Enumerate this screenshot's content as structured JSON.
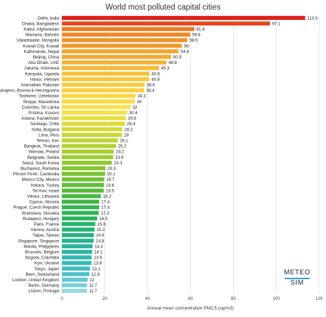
{
  "chart_data": {
    "type": "bar",
    "orientation": "horizontal",
    "title": "World most polluted capital cities",
    "xlabel": "Annual mean concentration PM2,5 (ug/m3)",
    "ylabel": "",
    "xlim": [
      0,
      120
    ],
    "xticks": [
      0,
      20,
      40,
      60,
      80,
      100,
      120
    ],
    "grid": true,
    "legend": "none",
    "categories": [
      "Delhi, India",
      "Dhaka, Bangladesh",
      "Kabul, Afghanistan",
      "Manama, Bahrein",
      "Ulaanbaatar, Mongolia",
      "Kuwait City, Kuwait",
      "Kathmandu, Nepal",
      "Beijing, China",
      "Abu Dhabi, UAE",
      "Jakarta, Indonesia",
      "Kampala, Uganda",
      "Hanoi, Vietnam",
      "Islamabad, Pakistan",
      "Sarajevo, Bosnia & Herzegovina",
      "Tashkent, Uzbekistan",
      "Skopje, Macedonia",
      "Colombo, Sri Lanka",
      "Pristina, Kosovo",
      "Astana, Kazakhstan",
      "Santiago, Chile",
      "Sofia, Bulgaria",
      "Lima, Peru",
      "Tehran, Iran",
      "Bangkok, Thailand",
      "Warsaw, Poland",
      "Belgrade, Serbia",
      "Seoul, South Korea",
      "Bucharest, Romania",
      "Phnom Penh, Cambodia",
      "Mexico City, Mexico",
      "Ankara, Turkey",
      "Tel Aviv, Israel",
      "Vilnius, Lithuania",
      "Cyprus, Nicosia",
      "Prague, Czech Republic",
      "Bratislava, Slovakia",
      "Budapest, Hungary",
      "Paris, France",
      "Vienna, Austria",
      "Taipei, Taiwan",
      "Singapore, Singapore",
      "Manila, Philippines",
      "Brussels, Belgium",
      "Bogota, Colombia",
      "Kyiv, Ukraine",
      "Tokyo, Japan",
      "Bern, Switzerland",
      "London, United Kingdom",
      "Berlin, Germany",
      "Lisbon, Portugal"
    ],
    "values": [
      113.5,
      97.1,
      61.8,
      59.8,
      58.5,
      56,
      54.4,
      50.9,
      48.8,
      45.3,
      40.8,
      40.8,
      38.6,
      38.4,
      34.3,
      34,
      32,
      30.4,
      29.8,
      29.4,
      28.2,
      28,
      26.1,
      25.2,
      24.2,
      23.9,
      23.3,
      20.3,
      20.1,
      19.7,
      19.6,
      19.5,
      18.2,
      17.4,
      17.4,
      17.2,
      16.5,
      15.6,
      15.2,
      14.9,
      14.8,
      14.3,
      14.1,
      13.9,
      13.8,
      13.1,
      12.8,
      12,
      11.7,
      11.7
    ],
    "value_labels": [
      "113.5",
      "97.1",
      "61.8",
      "59.8",
      "58.5",
      "56",
      "54.4",
      "50.9",
      "48.8",
      "45.3",
      "40.8",
      "40.8",
      "38.6",
      "38.4",
      "34.3",
      "34",
      "32",
      "30.4",
      "29.8",
      "29.4",
      "28.2",
      "28",
      "26.1",
      "25.2",
      "24.2",
      "23.9",
      "23.3",
      "20.3",
      "20.1",
      "19.7",
      "19.6",
      "19.5",
      "18.2",
      "17.4",
      "17.4",
      "17.2",
      "16.5",
      "15.6",
      "15.2",
      "14.9",
      "14.8",
      "14.3",
      "14.1",
      "13.9",
      "13.8",
      "13.1",
      "12.8",
      "12",
      "11.7",
      "11.7"
    ],
    "colors": [
      "#e0201b",
      "#e8481d",
      "#ef7a24",
      "#f08826",
      "#f0922a",
      "#f29a2c",
      "#f3a32f",
      "#f4aa31",
      "#f5b234",
      "#f6ba36",
      "#f7c13a",
      "#f8c73c",
      "#f8cc3e",
      "#f9d040",
      "#fad643",
      "#fbda44",
      "#fce046",
      "#f4e044",
      "#e9de3f",
      "#dedc3a",
      "#d3da37",
      "#c8d834",
      "#bdd632",
      "#b1d330",
      "#a6d02f",
      "#9bcd2e",
      "#90ca2e",
      "#84c72f",
      "#78c431",
      "#6cc134",
      "#60be37",
      "#55bc3b",
      "#4aba40",
      "#3fb846",
      "#36b74d",
      "#2fb655",
      "#2ab55f",
      "#27b46a",
      "#26b476",
      "#26b482",
      "#27b48e",
      "#29b59a",
      "#2cb6a5",
      "#30b8b0",
      "#35baba",
      "#3ebdc3",
      "#4ec1cb",
      "#62c7d3",
      "#7bcfdb",
      "#97d8e3"
    ]
  },
  "logo": {
    "line1": "METEO",
    "line2": "SIM"
  }
}
